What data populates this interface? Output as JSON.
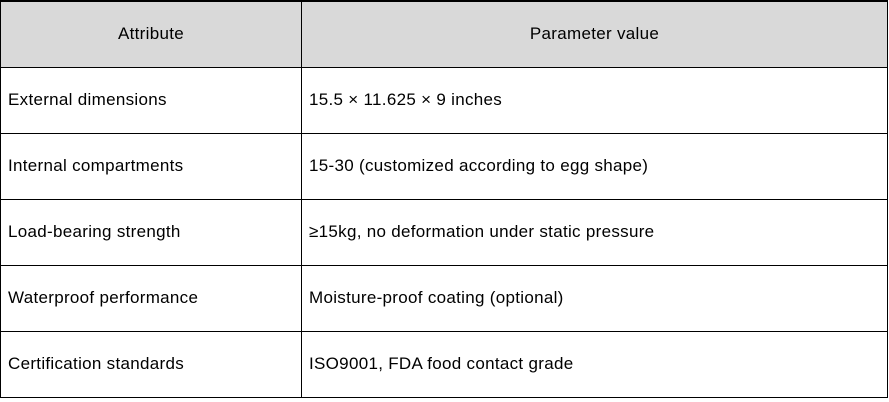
{
  "table": {
    "header": {
      "attribute": "Attribute",
      "value": "Parameter value"
    },
    "rows": [
      {
        "attribute": "External dimensions",
        "value": "15.5 × 11.625 × 9 inches"
      },
      {
        "attribute": "Internal compartments",
        "value": "15-30 (customized according to egg shape)"
      },
      {
        "attribute": "Load-bearing strength",
        "value": "≥15kg, no deformation under static pressure"
      },
      {
        "attribute": "Waterproof performance",
        "value": "Moisture-proof coating (optional)"
      },
      {
        "attribute": "Certification standards",
        "value": "ISO9001, FDA food contact grade"
      }
    ],
    "colors": {
      "header_background": "#d9d9d9",
      "border": "#000000",
      "text": "#000000",
      "cell_background": "#ffffff"
    }
  }
}
